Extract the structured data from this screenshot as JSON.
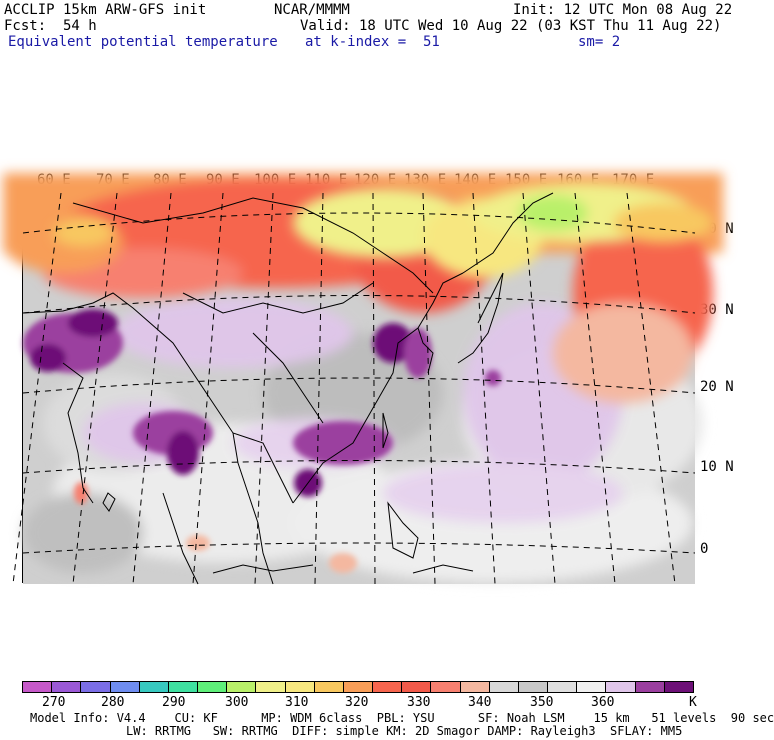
{
  "header": {
    "model": "ACCLIP 15km ARW-GFS init",
    "center": "NCAR/MMMM",
    "init": "Init: 12 UTC Mon 08 Aug 22",
    "fcst_label": "Fcst:",
    "fcst_value": "54 h",
    "valid": "Valid: 18 UTC Wed 10 Aug 22 (03 KST Thu 11 Aug 22)",
    "field": "Equivalent potential temperature",
    "level": "at k-index =  51",
    "smoothing": "sm= 2"
  },
  "map": {
    "lon_labels": [
      "60 E",
      "70 E",
      "80 E",
      "90 E",
      "100 E",
      "110 E",
      "120 E",
      "130 E",
      "140 E",
      "150 E",
      "160 E",
      "170 E"
    ],
    "lat_labels": [
      "40 N",
      "30 N",
      "20 N",
      "10 N",
      "0"
    ]
  },
  "colorbar": {
    "colors": [
      "#c659c9",
      "#9b59d6",
      "#7b6ee6",
      "#6f8df0",
      "#38c9c0",
      "#3fe0a0",
      "#5fef7a",
      "#b9f06a",
      "#f0f08a",
      "#f7e780",
      "#f8c860",
      "#f89e58",
      "#f6654e",
      "#f25a4a",
      "#f78070",
      "#f4b8a0",
      "#d8d8d8",
      "#c8c8c8",
      "#dfdfdf",
      "#f0f0f0",
      "#e0c6ea",
      "#9b3f9f",
      "#6d1077"
    ],
    "labels": [
      "270",
      "280",
      "290",
      "300",
      "310",
      "320",
      "330",
      "340",
      "350",
      "360"
    ],
    "unit": "K"
  },
  "footer": {
    "line1": "Model Info: V4.4    CU: KF      MP: WDM 6class  PBL: YSU      SF: Noah LSM    15 km   51 levels  90 sec",
    "line2": "LW: RRTMG   SW: RRTMG  DIFF: simple KM: 2D Smagor DAMP: Rayleigh3  SFLAY: MM5"
  }
}
